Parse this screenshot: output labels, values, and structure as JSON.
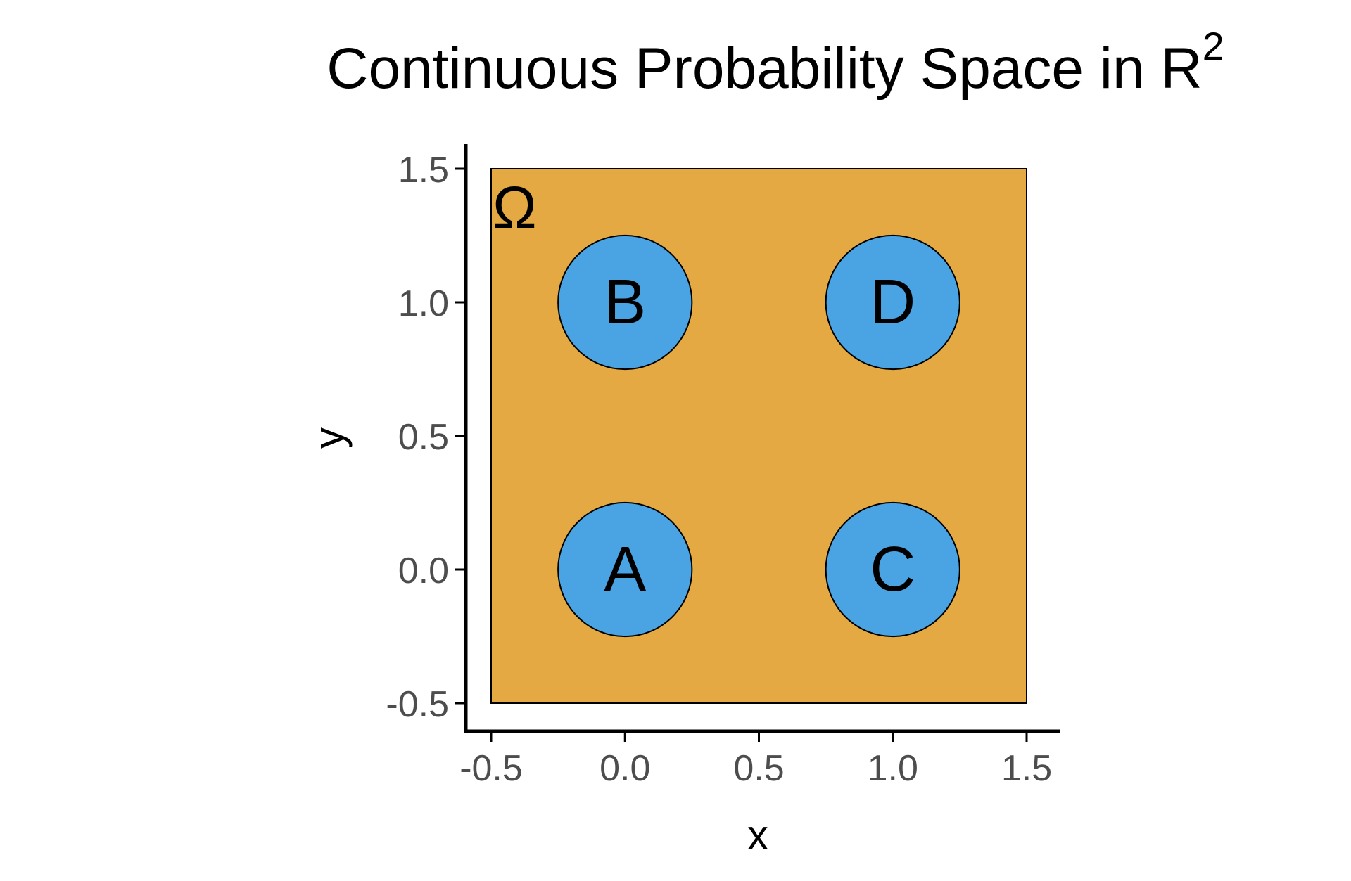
{
  "chart_data": {
    "type": "scatter",
    "title": "Continuous Probability Space in R",
    "title_superscript": "2",
    "xlabel": "x",
    "ylabel": "y",
    "xlim": [
      -0.5,
      1.5
    ],
    "ylim": [
      -0.5,
      1.5
    ],
    "xticks": [
      "-0.5",
      "0.0",
      "0.5",
      "1.0",
      "1.5"
    ],
    "yticks": [
      "-0.5",
      "0.0",
      "0.5",
      "1.0",
      "1.5"
    ],
    "grid": false,
    "sample_space": {
      "label": "Ω",
      "xmin": -0.5,
      "xmax": 1.5,
      "ymin": -0.5,
      "ymax": 1.5,
      "color": "#E4A942"
    },
    "events": [
      {
        "label": "A",
        "x": 0.0,
        "y": 0.0,
        "radius": 0.25
      },
      {
        "label": "B",
        "x": 0.0,
        "y": 1.0,
        "radius": 0.25
      },
      {
        "label": "C",
        "x": 1.0,
        "y": 0.0,
        "radius": 0.25
      },
      {
        "label": "D",
        "x": 1.0,
        "y": 1.0,
        "radius": 0.25
      }
    ],
    "event_color": "#4AA3E3",
    "axis_color": "#000000",
    "tick_label_color": "#4D4D4D"
  }
}
